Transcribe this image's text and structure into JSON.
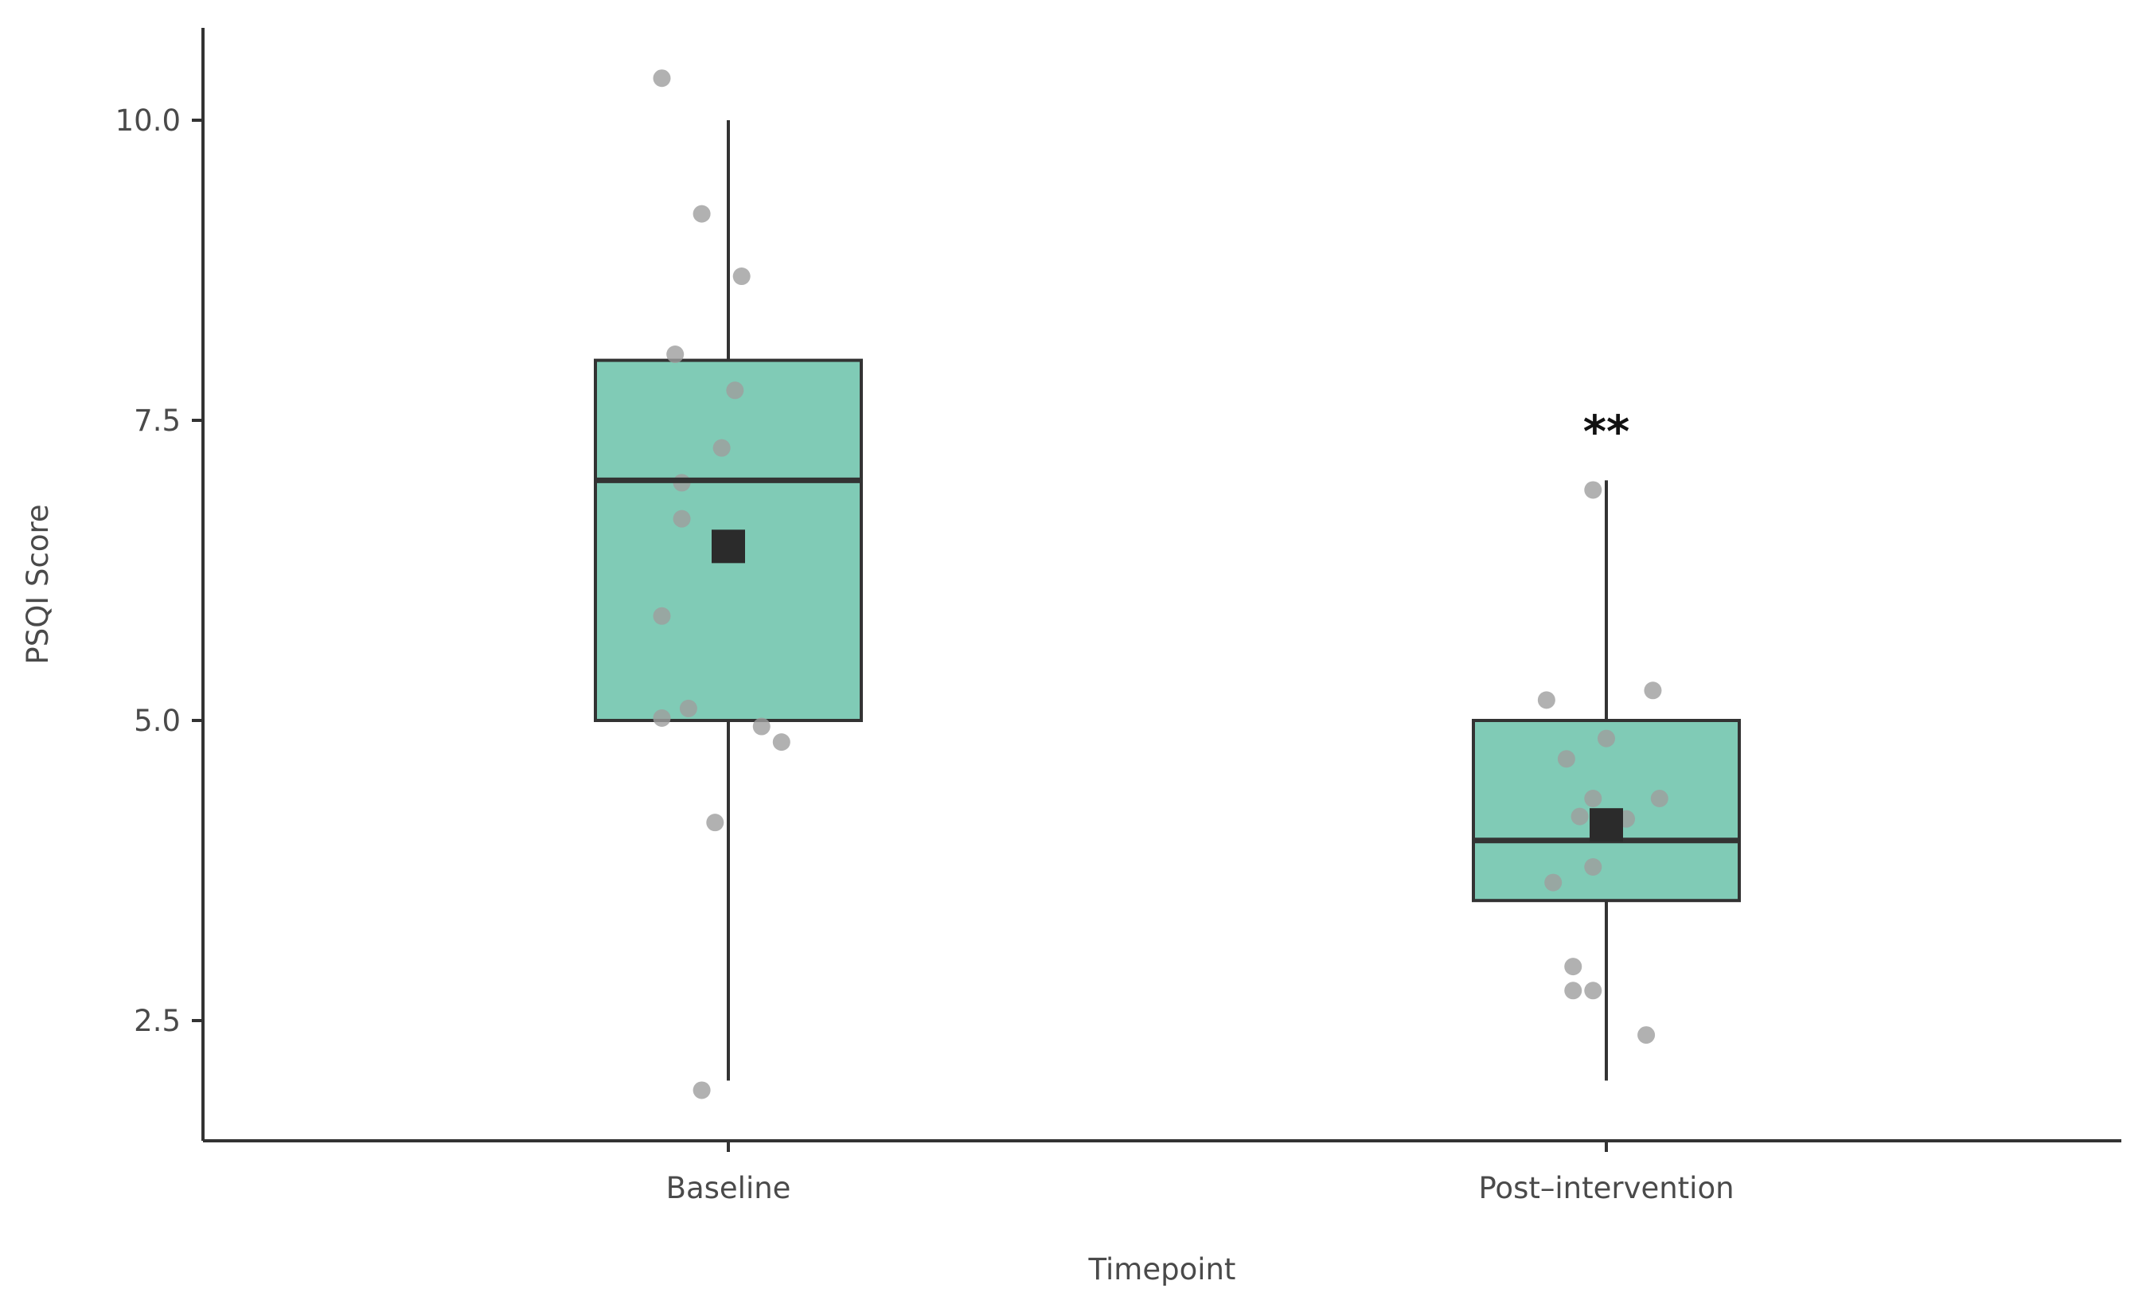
{
  "chart_data": {
    "type": "box",
    "xlabel": "Timepoint",
    "ylabel": "PSQI Score",
    "ylim": [
      1.5,
      10.8
    ],
    "yticks": [
      2.5,
      5.0,
      7.5,
      10.0
    ],
    "ytick_labels": [
      "2.5",
      "5.0",
      "7.5",
      "10.0"
    ],
    "categories": [
      "Baseline",
      "Post–intervention"
    ],
    "grid": false,
    "legend": "none",
    "colors": {
      "box_fill": "#80cbb6",
      "box_stroke": "#333333",
      "point": "#9e9e9e",
      "mean_marker": "#2b2b2b",
      "axis": "#333333"
    },
    "groups": [
      {
        "category": "Baseline",
        "min": 2.0,
        "q1": 5.0,
        "median": 7.0,
        "q3": 8.0,
        "max": 10.0,
        "mean": 6.45,
        "points": [
          {
            "x": -0.1,
            "y": 10.35
          },
          {
            "x": -0.04,
            "y": 9.22
          },
          {
            "x": 0.02,
            "y": 8.7
          },
          {
            "x": -0.08,
            "y": 8.05
          },
          {
            "x": 0.01,
            "y": 7.75
          },
          {
            "x": -0.01,
            "y": 7.27
          },
          {
            "x": -0.07,
            "y": 6.98
          },
          {
            "x": -0.07,
            "y": 6.68
          },
          {
            "x": -0.1,
            "y": 5.87
          },
          {
            "x": -0.06,
            "y": 5.1
          },
          {
            "x": -0.1,
            "y": 5.02
          },
          {
            "x": 0.05,
            "y": 4.95
          },
          {
            "x": 0.08,
            "y": 4.82
          },
          {
            "x": -0.02,
            "y": 4.15
          },
          {
            "x": -0.04,
            "y": 1.92
          }
        ]
      },
      {
        "category": "Post–intervention",
        "min": 2.0,
        "q1": 3.5,
        "median": 4.0,
        "q3": 5.0,
        "max": 7.0,
        "mean": 4.13,
        "annotation": "**",
        "points": [
          {
            "x": -0.02,
            "y": 6.92
          },
          {
            "x": 0.07,
            "y": 5.25
          },
          {
            "x": -0.09,
            "y": 5.17
          },
          {
            "x": 0.0,
            "y": 4.85
          },
          {
            "x": -0.06,
            "y": 4.68
          },
          {
            "x": -0.02,
            "y": 4.35
          },
          {
            "x": 0.08,
            "y": 4.35
          },
          {
            "x": -0.04,
            "y": 4.2
          },
          {
            "x": 0.03,
            "y": 4.18
          },
          {
            "x": -0.02,
            "y": 3.78
          },
          {
            "x": -0.08,
            "y": 3.65
          },
          {
            "x": -0.05,
            "y": 2.95
          },
          {
            "x": -0.05,
            "y": 2.75
          },
          {
            "x": -0.02,
            "y": 2.75
          },
          {
            "x": 0.06,
            "y": 2.38
          }
        ]
      }
    ]
  }
}
